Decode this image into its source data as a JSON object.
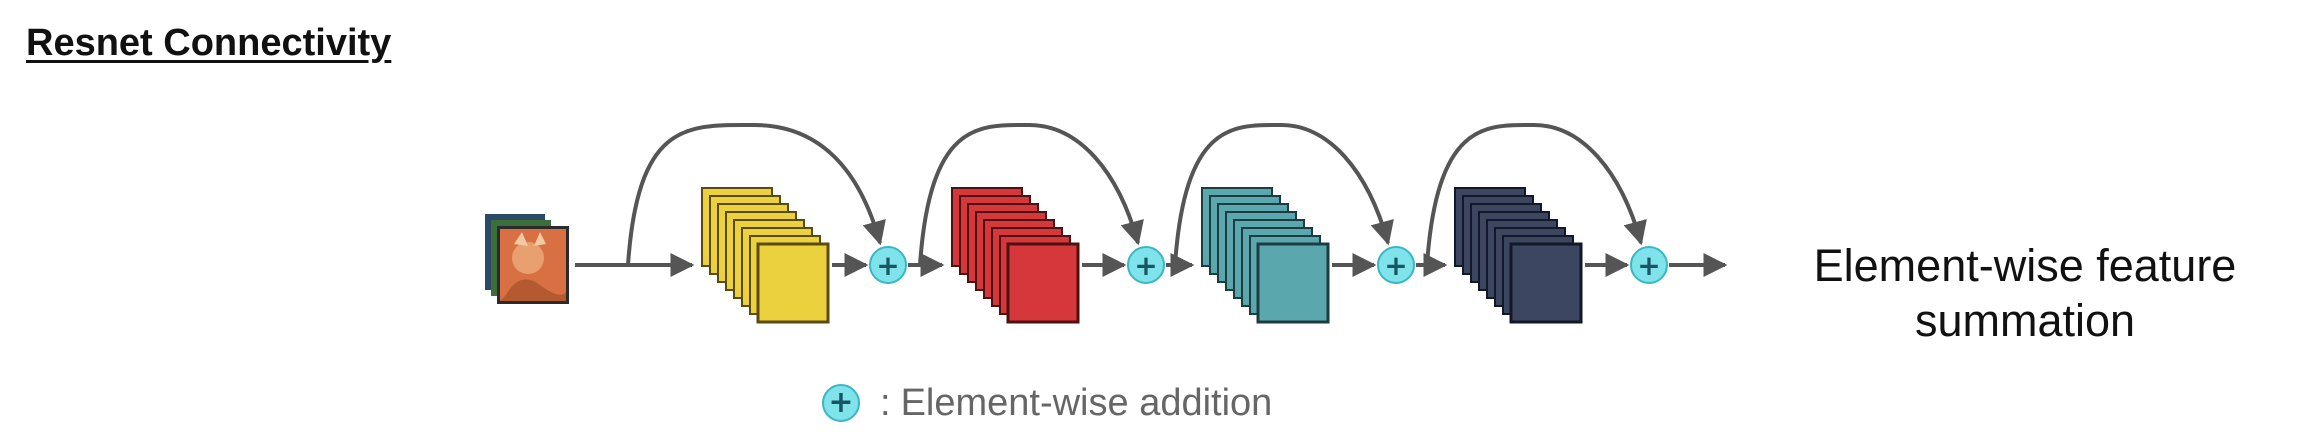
{
  "title": "Resnet Connectivity",
  "caption": {
    "line1": "Element-wise feature",
    "line2": "summation"
  },
  "legend": {
    "symbol": "+",
    "separator": ":",
    "label": "Element-wise addition"
  },
  "diagram": {
    "add_symbol": "+",
    "blocks": [
      {
        "name": "block-1",
        "color": "#ecd13f",
        "dark": "#5a4a10"
      },
      {
        "name": "block-2",
        "color": "#d6373a",
        "dark": "#4a1212"
      },
      {
        "name": "block-3",
        "color": "#5aa7ae",
        "dark": "#1d3c42"
      },
      {
        "name": "block-4",
        "color": "#3d4660",
        "dark": "#121826"
      }
    ],
    "add_node_color": "#7ee3ea",
    "arrow_color": "#555555"
  }
}
